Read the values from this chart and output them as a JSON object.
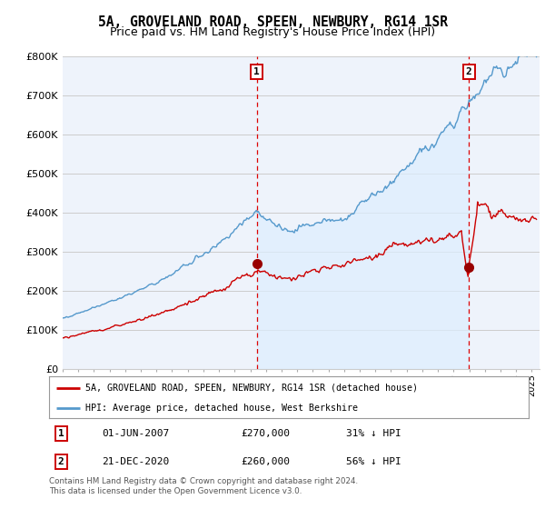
{
  "title": "5A, GROVELAND ROAD, SPEEN, NEWBURY, RG14 1SR",
  "subtitle": "Price paid vs. HM Land Registry's House Price Index (HPI)",
  "ylim": [
    0,
    800000
  ],
  "yticks": [
    0,
    100000,
    200000,
    300000,
    400000,
    500000,
    600000,
    700000,
    800000
  ],
  "ytick_labels": [
    "£0",
    "£100K",
    "£200K",
    "£300K",
    "£400K",
    "£500K",
    "£600K",
    "£700K",
    "£800K"
  ],
  "xlim_start": 1995.0,
  "xlim_end": 2025.5,
  "red_line_color": "#cc0000",
  "blue_line_color": "#5599cc",
  "fill_color": "#ddeeff",
  "sale1_x": 2007.42,
  "sale1_y": 270000,
  "sale2_x": 2020.97,
  "sale2_y": 260000,
  "sale1_date": "01-JUN-2007",
  "sale1_price": "£270,000",
  "sale1_pct": "31% ↓ HPI",
  "sale2_date": "21-DEC-2020",
  "sale2_price": "£260,000",
  "sale2_pct": "56% ↓ HPI",
  "legend_red_label": "5A, GROVELAND ROAD, SPEEN, NEWBURY, RG14 1SR (detached house)",
  "legend_blue_label": "HPI: Average price, detached house, West Berkshire",
  "footnote": "Contains HM Land Registry data © Crown copyright and database right 2024.\nThis data is licensed under the Open Government Licence v3.0.",
  "bg_color": "#ffffff",
  "plot_bg_color": "#eef3fb",
  "grid_color": "#cccccc",
  "title_fontsize": 10.5,
  "subtitle_fontsize": 9
}
